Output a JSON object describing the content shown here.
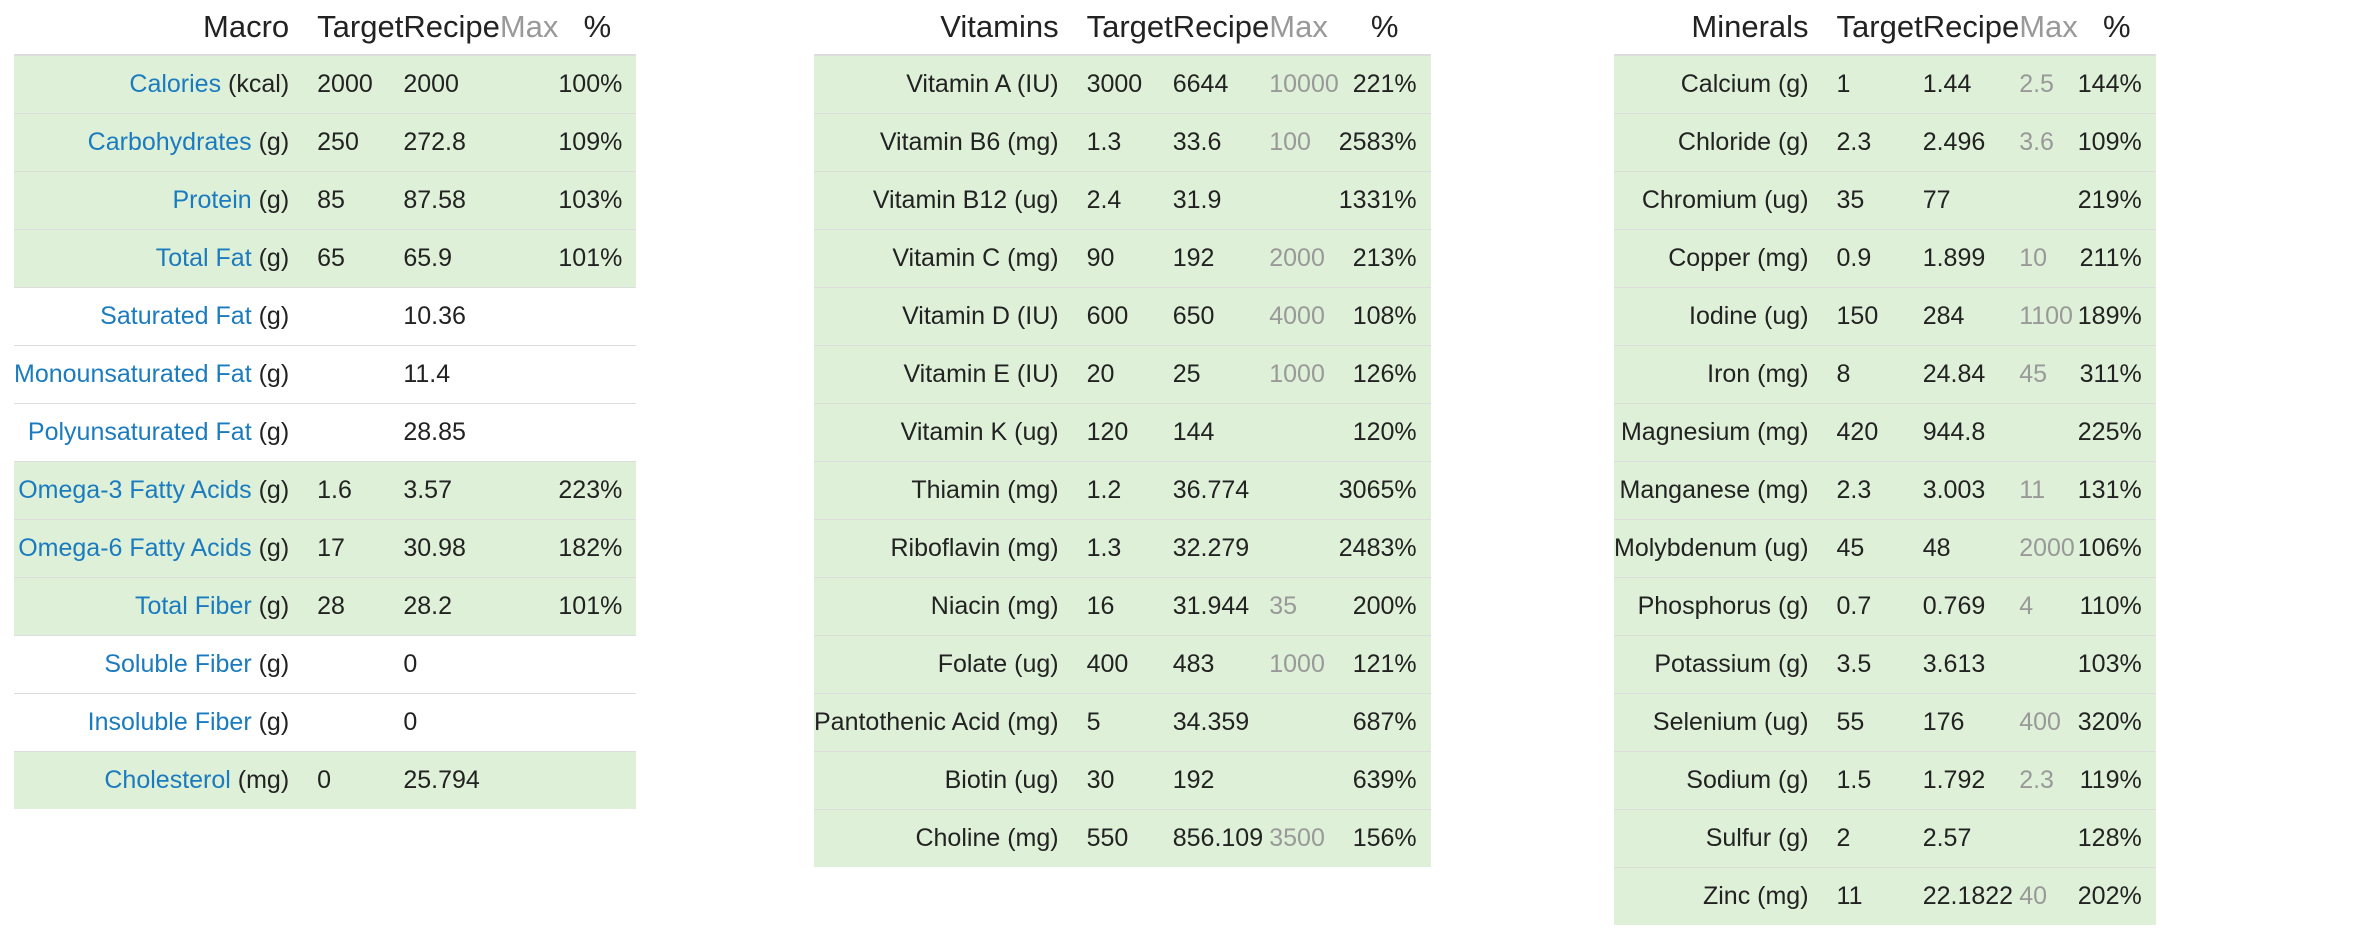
{
  "headers": {
    "macro": {
      "name": "Macro",
      "target": "Target",
      "recipe": "Recipe",
      "max": "Max",
      "pct": "%"
    },
    "vitamins": {
      "name": "Vitamins",
      "target": "Target",
      "recipe": "Recipe",
      "max": "Max",
      "pct": "%"
    },
    "minerals": {
      "name": "Minerals",
      "target": "Target",
      "recipe": "Recipe",
      "max": "Max",
      "pct": "%"
    }
  },
  "macro_rows": [
    {
      "name": "Calories",
      "unit": " (kcal)",
      "target": "2000",
      "recipe": "2000",
      "max": "",
      "pct": "100%",
      "highlight": true
    },
    {
      "name": "Carbohydrates",
      "unit": " (g)",
      "target": "250",
      "recipe": "272.8",
      "max": "",
      "pct": "109%",
      "highlight": true
    },
    {
      "name": "Protein",
      "unit": " (g)",
      "target": "85",
      "recipe": "87.58",
      "max": "",
      "pct": "103%",
      "highlight": true
    },
    {
      "name": "Total Fat",
      "unit": " (g)",
      "target": "65",
      "recipe": "65.9",
      "max": "",
      "pct": "101%",
      "highlight": true
    },
    {
      "name": "Saturated Fat",
      "unit": " (g)",
      "target": "",
      "recipe": "10.36",
      "max": "",
      "pct": "",
      "highlight": false
    },
    {
      "name": "Monounsaturated Fat",
      "unit": " (g)",
      "target": "",
      "recipe": "11.4",
      "max": "",
      "pct": "",
      "highlight": false
    },
    {
      "name": "Polyunsaturated Fat",
      "unit": " (g)",
      "target": "",
      "recipe": "28.85",
      "max": "",
      "pct": "",
      "highlight": false
    },
    {
      "name": "Omega-3 Fatty Acids",
      "unit": " (g)",
      "target": "1.6",
      "recipe": "3.57",
      "max": "",
      "pct": "223%",
      "highlight": true
    },
    {
      "name": "Omega-6 Fatty Acids",
      "unit": " (g)",
      "target": "17",
      "recipe": "30.98",
      "max": "",
      "pct": "182%",
      "highlight": true
    },
    {
      "name": "Total Fiber",
      "unit": " (g)",
      "target": "28",
      "recipe": "28.2",
      "max": "",
      "pct": "101%",
      "highlight": true
    },
    {
      "name": "Soluble Fiber",
      "unit": " (g)",
      "target": "",
      "recipe": "0",
      "max": "",
      "pct": "",
      "highlight": false
    },
    {
      "name": "Insoluble Fiber",
      "unit": " (g)",
      "target": "",
      "recipe": "0",
      "max": "",
      "pct": "",
      "highlight": false
    },
    {
      "name": "Cholesterol",
      "unit": " (mg)",
      "target": "0",
      "recipe": "25.794",
      "max": "",
      "pct": "",
      "highlight": true
    }
  ],
  "vitamin_rows": [
    {
      "name": "Vitamin A (IU)",
      "target": "3000",
      "recipe": "6644",
      "max": "10000",
      "pct": "221%",
      "highlight": true
    },
    {
      "name": "Vitamin B6 (mg)",
      "target": "1.3",
      "recipe": "33.6",
      "max": "100",
      "pct": "2583%",
      "highlight": true
    },
    {
      "name": "Vitamin B12 (ug)",
      "target": "2.4",
      "recipe": "31.9",
      "max": "",
      "pct": "1331%",
      "highlight": true
    },
    {
      "name": "Vitamin C (mg)",
      "target": "90",
      "recipe": "192",
      "max": "2000",
      "pct": "213%",
      "highlight": true
    },
    {
      "name": "Vitamin D (IU)",
      "target": "600",
      "recipe": "650",
      "max": "4000",
      "pct": "108%",
      "highlight": true
    },
    {
      "name": "Vitamin E (IU)",
      "target": "20",
      "recipe": "25",
      "max": "1000",
      "pct": "126%",
      "highlight": true
    },
    {
      "name": "Vitamin K (ug)",
      "target": "120",
      "recipe": "144",
      "max": "",
      "pct": "120%",
      "highlight": true
    },
    {
      "name": "Thiamin (mg)",
      "target": "1.2",
      "recipe": "36.774",
      "max": "",
      "pct": "3065%",
      "highlight": true
    },
    {
      "name": "Riboflavin (mg)",
      "target": "1.3",
      "recipe": "32.279",
      "max": "",
      "pct": "2483%",
      "highlight": true
    },
    {
      "name": "Niacin (mg)",
      "target": "16",
      "recipe": "31.944",
      "max": "35",
      "pct": "200%",
      "highlight": true
    },
    {
      "name": "Folate (ug)",
      "target": "400",
      "recipe": "483",
      "max": "1000",
      "pct": "121%",
      "highlight": true
    },
    {
      "name": "Pantothenic Acid (mg)",
      "target": "5",
      "recipe": "34.359",
      "max": "",
      "pct": "687%",
      "highlight": true
    },
    {
      "name": "Biotin (ug)",
      "target": "30",
      "recipe": "192",
      "max": "",
      "pct": "639%",
      "highlight": true
    },
    {
      "name": "Choline (mg)",
      "target": "550",
      "recipe": "856.109",
      "max": "3500",
      "pct": "156%",
      "highlight": true
    }
  ],
  "mineral_rows": [
    {
      "name": "Calcium (g)",
      "target": "1",
      "recipe": "1.44",
      "max": "2.5",
      "pct": "144%",
      "highlight": true
    },
    {
      "name": "Chloride (g)",
      "target": "2.3",
      "recipe": "2.496",
      "max": "3.6",
      "pct": "109%",
      "highlight": true
    },
    {
      "name": "Chromium (ug)",
      "target": "35",
      "recipe": "77",
      "max": "",
      "pct": "219%",
      "highlight": true
    },
    {
      "name": "Copper (mg)",
      "target": "0.9",
      "recipe": "1.899",
      "max": "10",
      "pct": "211%",
      "highlight": true
    },
    {
      "name": "Iodine (ug)",
      "target": "150",
      "recipe": "284",
      "max": "1100",
      "pct": "189%",
      "highlight": true
    },
    {
      "name": "Iron (mg)",
      "target": "8",
      "recipe": "24.84",
      "max": "45",
      "pct": "311%",
      "highlight": true
    },
    {
      "name": "Magnesium (mg)",
      "target": "420",
      "recipe": "944.8",
      "max": "",
      "pct": "225%",
      "highlight": true
    },
    {
      "name": "Manganese (mg)",
      "target": "2.3",
      "recipe": "3.003",
      "max": "11",
      "pct": "131%",
      "highlight": true
    },
    {
      "name": "Molybdenum (ug)",
      "target": "45",
      "recipe": "48",
      "max": "2000",
      "pct": "106%",
      "highlight": true
    },
    {
      "name": "Phosphorus (g)",
      "target": "0.7",
      "recipe": "0.769",
      "max": "4",
      "pct": "110%",
      "highlight": true
    },
    {
      "name": "Potassium (g)",
      "target": "3.5",
      "recipe": "3.613",
      "max": "",
      "pct": "103%",
      "highlight": true
    },
    {
      "name": "Selenium (ug)",
      "target": "55",
      "recipe": "176",
      "max": "400",
      "pct": "320%",
      "highlight": true
    },
    {
      "name": "Sodium (g)",
      "target": "1.5",
      "recipe": "1.792",
      "max": "2.3",
      "pct": "119%",
      "highlight": true
    },
    {
      "name": "Sulfur (g)",
      "target": "2",
      "recipe": "2.57",
      "max": "",
      "pct": "128%",
      "highlight": true
    },
    {
      "name": "Zinc (mg)",
      "target": "11",
      "recipe": "22.1822",
      "max": "40",
      "pct": "202%",
      "highlight": true
    }
  ],
  "colors": {
    "highlight_row": "#dff0d8",
    "link": "#1a7bbf",
    "muted": "#999999",
    "border": "#dddddd"
  }
}
